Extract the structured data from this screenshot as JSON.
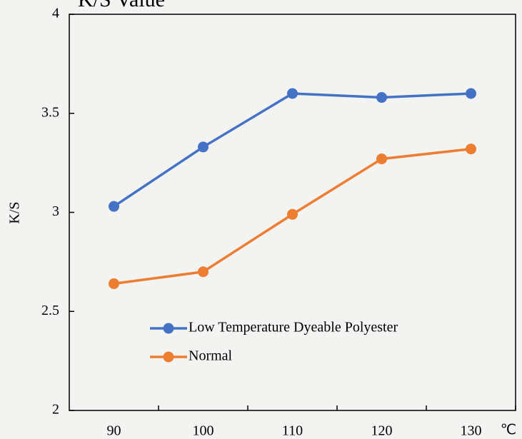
{
  "chart_data": {
    "type": "line",
    "title": "K/S Value",
    "y_label": "K/S",
    "x_label": "℃",
    "categories": [
      "90",
      "100",
      "110",
      "120",
      "130"
    ],
    "series": [
      {
        "name": "Low Temperature Dyeable Polyester",
        "color": "#4472c4",
        "values": [
          3.03,
          3.33,
          3.6,
          3.58,
          3.6
        ]
      },
      {
        "name": "Normal",
        "color": "#ed7d31",
        "values": [
          2.64,
          2.7,
          2.99,
          3.27,
          3.32
        ]
      }
    ],
    "ylim": [
      2,
      4
    ],
    "yticks": [
      2,
      2.5,
      3,
      3.5,
      4
    ],
    "legend": "lower-left"
  }
}
